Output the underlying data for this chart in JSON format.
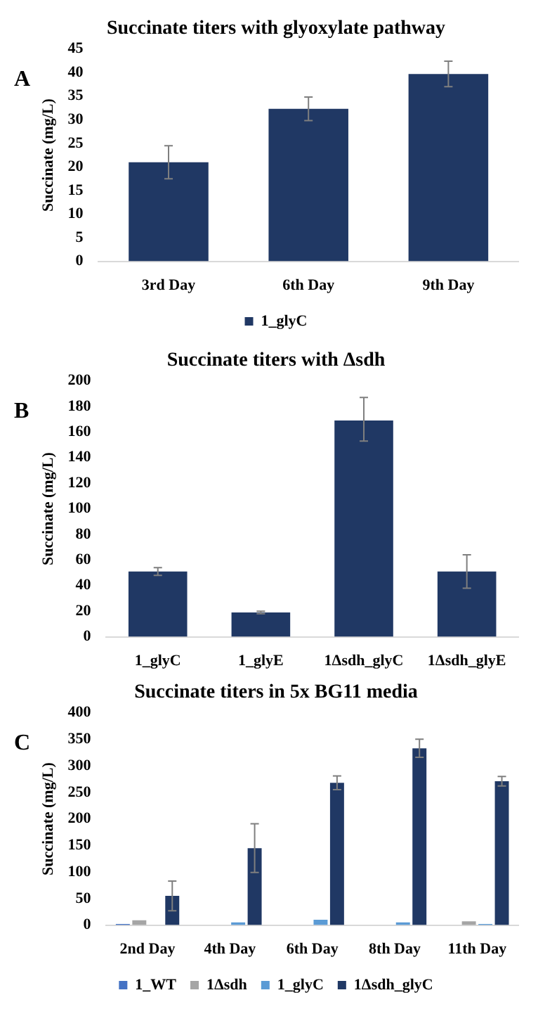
{
  "chart_data": [
    {
      "type": "bar",
      "title": "Succinate titers with glyoxylate pathway",
      "ylabel": "Succinate (mg/L)",
      "annotations": [
        "A"
      ],
      "categories": [
        "3rd Day",
        "6th Day",
        "9th Day"
      ],
      "ylim": [
        0,
        45
      ],
      "yticks": [
        0,
        5,
        10,
        15,
        20,
        25,
        30,
        35,
        40,
        45
      ],
      "grid": false,
      "legend": "bottom",
      "series": [
        {
          "name": "1_glyC",
          "color": "#203864",
          "values": [
            21,
            32.3,
            39.7
          ],
          "errors": [
            3.5,
            2.5,
            2.7
          ]
        }
      ]
    },
    {
      "type": "bar",
      "title": "Succinate titers with Δsdh",
      "ylabel": "Succinate (mg/L)",
      "annotations": [
        "B"
      ],
      "categories": [
        "1_glyC",
        "1_glyE",
        "1Δsdh_glyC",
        "1Δsdh_glyE"
      ],
      "ylim": [
        0,
        200
      ],
      "yticks": [
        0,
        20,
        40,
        60,
        80,
        100,
        120,
        140,
        160,
        180,
        200
      ],
      "grid": false,
      "color": "#203864",
      "values": [
        51,
        19,
        169,
        51
      ],
      "errors": [
        3,
        1,
        [
          153,
          187
        ],
        13
      ]
    },
    {
      "type": "bar",
      "title": "Succinate titers in 5x BG11 media",
      "ylabel": "Succinate (mg/L)",
      "annotations": [
        "C"
      ],
      "categories": [
        "2nd Day",
        "4th Day",
        "6th Day",
        "8th Day",
        "11th Day"
      ],
      "ylim": [
        0,
        400
      ],
      "yticks": [
        0,
        50,
        100,
        150,
        200,
        250,
        300,
        350,
        400
      ],
      "grid": false,
      "legend": "bottom",
      "series": [
        {
          "name": "1_WT",
          "color": "#4472c4",
          "values": [
            2,
            0,
            0,
            0,
            0
          ]
        },
        {
          "name": "1Δsdh",
          "color": "#a5a5a5",
          "values": [
            9,
            0,
            0,
            0,
            7
          ]
        },
        {
          "name": "1_glyC",
          "color": "#5b9bd5",
          "values": [
            0,
            5,
            10,
            5,
            2
          ]
        },
        {
          "name": "1Δsdh_glyC",
          "color": "#203864",
          "values": [
            55,
            145,
            268,
            333,
            271
          ],
          "errors": [
            28,
            46,
            13,
            17,
            9
          ]
        }
      ]
    }
  ]
}
